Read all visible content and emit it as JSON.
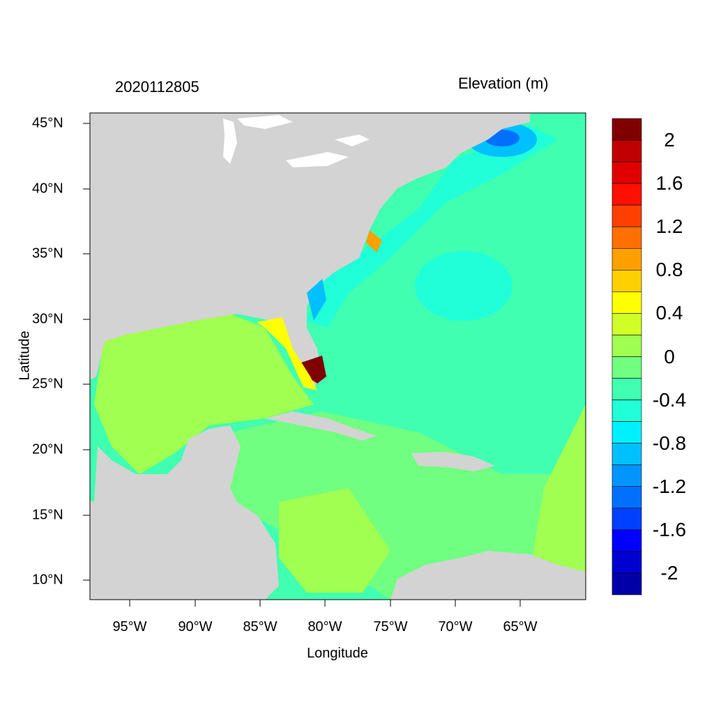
{
  "header": {
    "date": "2020112805",
    "variable": "Elevation (m)"
  },
  "axes": {
    "xlabel": "Longitude",
    "ylabel": "Latitude",
    "xticks": [
      "95°W",
      "90°W",
      "85°W",
      "80°W",
      "75°W",
      "70°W",
      "65°W"
    ],
    "yticks": [
      "45°N",
      "40°N",
      "35°N",
      "30°N",
      "25°N",
      "20°N",
      "15°N",
      "10°N"
    ]
  },
  "colorbar": {
    "colors": [
      "#0000a8",
      "#0000d0",
      "#0000ff",
      "#0040ff",
      "#0070ff",
      "#0095ff",
      "#00c0ff",
      "#00f0ff",
      "#20ffd8",
      "#40ffb0",
      "#70ff80",
      "#a0ff50",
      "#d0ff28",
      "#ffff00",
      "#ffd000",
      "#ffa000",
      "#ff7000",
      "#ff4000",
      "#ff1000",
      "#e00000",
      "#c00000",
      "#800000"
    ],
    "labels": [
      "2",
      "1.6",
      "1.2",
      "0.8",
      "0.4",
      "0",
      "-0.4",
      "-0.8",
      "-1.2",
      "-1.6",
      "-2"
    ]
  },
  "map": {
    "land_color": "#d3d3d3",
    "lake_color": "#ffffff"
  }
}
